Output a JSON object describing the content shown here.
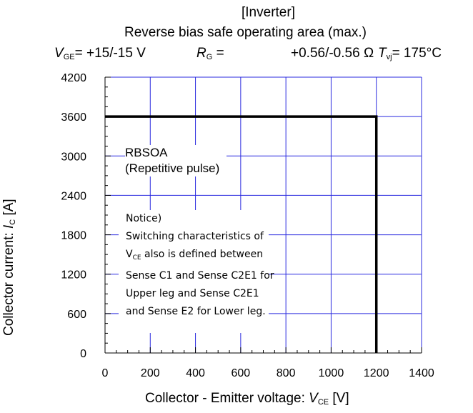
{
  "header": {
    "line1": "[Inverter]",
    "line2": "Reverse bias safe operating area (max.)",
    "vge_sym": "V",
    "vge_sub": "GE",
    "vge_val": "= +15/-15 V",
    "rg_sym": "R",
    "rg_sub": "G",
    "rg_eq": "=",
    "rg_val": "+0.56/-0.56 Ω",
    "tvj_sym": "T",
    "tvj_sub": "vj",
    "tvj_val": "= 175°C"
  },
  "axes": {
    "y_prefix": "Collector current: ",
    "y_sym": "I",
    "y_sub": "C",
    "y_unit": " [A]",
    "x_prefix": "Collector - Emitter voltage: ",
    "x_sym": "V",
    "x_sub": "CE",
    "x_unit": " [V]"
  },
  "annotations": {
    "rbsoa_line1": "RBSOA",
    "rbsoa_line2": "(Repetitive pulse)",
    "notice_title": "Notice)",
    "notice_l1": "Switching characteristics of",
    "notice_l2_sym": "V",
    "notice_l2_sub": "CE",
    "notice_l2_rest": " also is defined between",
    "notice_l3": "Sense C1 and Sense C2E1 for",
    "notice_l4": "Upper leg  and Sense  C2E1",
    "notice_l5": "and Sense E2 for Lower  leg."
  },
  "chart_data": {
    "type": "line",
    "title": "Reverse bias safe operating area (max.)",
    "xlabel": "Collector - Emitter voltage: VCE [V]",
    "ylabel": "Collector current: IC [A]",
    "xlim": [
      0,
      1400
    ],
    "ylim": [
      0,
      4200
    ],
    "x_ticks": [
      0,
      200,
      400,
      600,
      800,
      1000,
      1200,
      1400
    ],
    "y_ticks": [
      0,
      600,
      1200,
      1800,
      2400,
      3000,
      3600,
      4200
    ],
    "grid": true,
    "series": [
      {
        "name": "RBSOA (Repetitive pulse)",
        "x": [
          0,
          1200,
          1200
        ],
        "y": [
          3600,
          3600,
          0
        ]
      }
    ],
    "colors": {
      "grid": "#2a2adf",
      "boundary": "#000000",
      "axis": "#000000"
    }
  }
}
